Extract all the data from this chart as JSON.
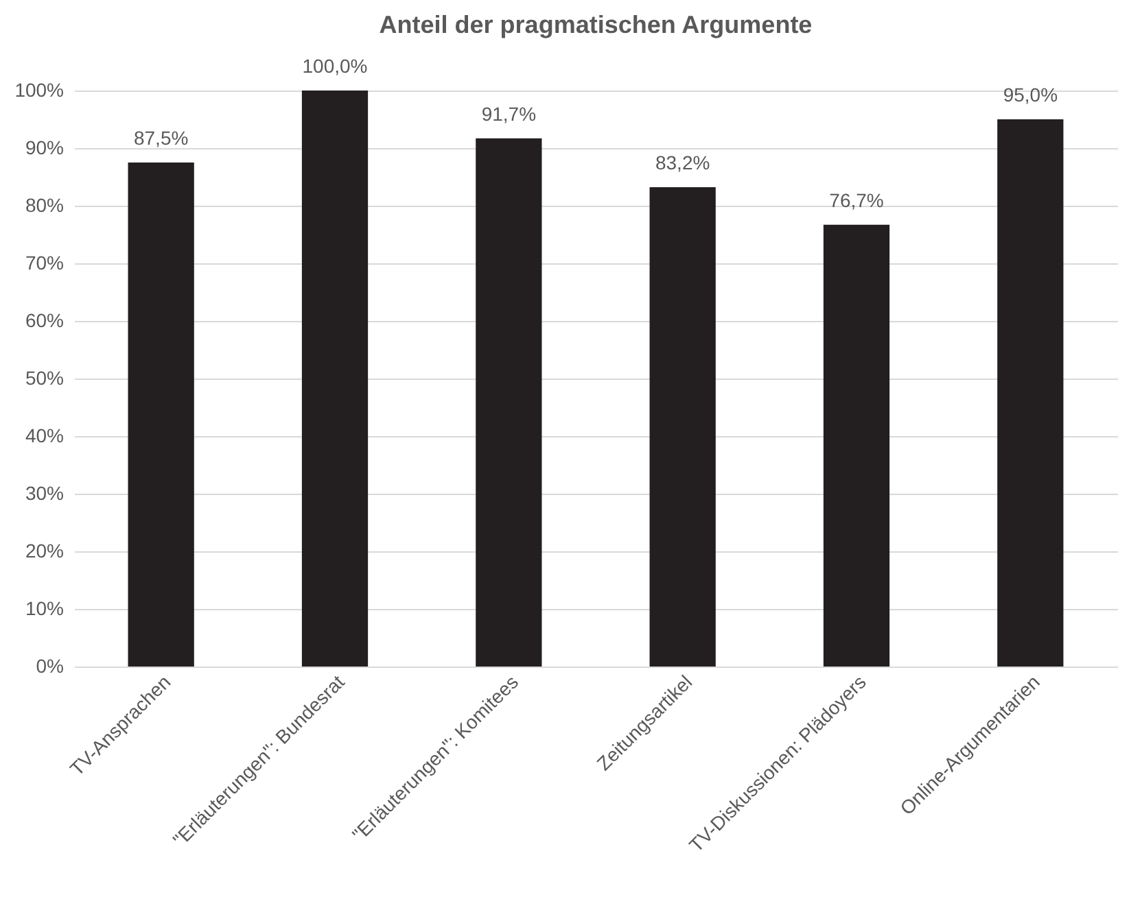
{
  "chart_data": {
    "type": "bar",
    "title": "Anteil der pragmatischen Argumente",
    "categories": [
      "TV-Ansprachen",
      "\"Erläuterungen\": Bundesrat",
      "\"Erläuterungen\": Komitees",
      "Zeitungsartikel",
      "TV-Diskussionen: Plädoyers",
      "Online-Argumentarien"
    ],
    "values": [
      87.5,
      100.0,
      91.7,
      83.2,
      76.7,
      95.0
    ],
    "value_labels": [
      "87,5%",
      "100,0%",
      "91,7%",
      "83,2%",
      "76,7%",
      "95,0%"
    ],
    "color": "#231f20",
    "ylim": [
      0,
      100
    ],
    "yticks": [
      {
        "value": 0,
        "label": "0%"
      },
      {
        "value": 10,
        "label": "10%"
      },
      {
        "value": 20,
        "label": "20%"
      },
      {
        "value": 30,
        "label": "30%"
      },
      {
        "value": 40,
        "label": "40%"
      },
      {
        "value": 50,
        "label": "50%"
      },
      {
        "value": 60,
        "label": "60%"
      },
      {
        "value": 70,
        "label": "70%"
      },
      {
        "value": 80,
        "label": "80%"
      },
      {
        "value": 90,
        "label": "90%"
      },
      {
        "value": 100,
        "label": "100%"
      }
    ],
    "grid": "y"
  }
}
